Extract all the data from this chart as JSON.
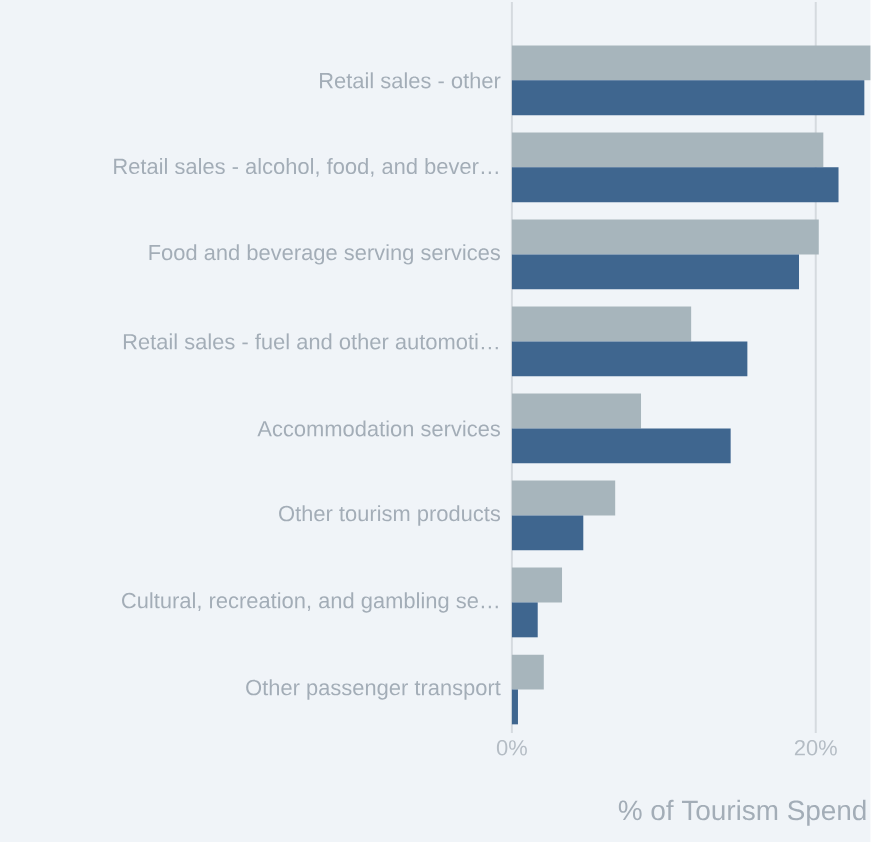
{
  "chart_data": {
    "type": "bar",
    "orientation": "horizontal",
    "xlabel": "% of Tourism Spend",
    "categories": [
      "Retail sales - other",
      "Retail sales - alcohol, food, and bever…",
      "Food and beverage serving services",
      "Retail sales - fuel and other automoti…",
      "Accommodation services",
      "Other tourism products",
      "Cultural, recreation, and gambling se…",
      "Other passenger transport"
    ],
    "series": [
      {
        "color": "#a7b5bc",
        "values": [
          23.6,
          20.5,
          20.2,
          11.8,
          8.5,
          6.8,
          3.3,
          2.1
        ]
      },
      {
        "color": "#3f668f",
        "values": [
          23.2,
          21.5,
          18.9,
          15.5,
          14.4,
          4.7,
          1.7,
          0.4
        ]
      }
    ],
    "xlim": [
      0,
      23.6
    ],
    "xticks": [
      {
        "value": 0,
        "label": "0%"
      },
      {
        "value": 20,
        "label": "20%"
      }
    ],
    "grid": "x"
  }
}
